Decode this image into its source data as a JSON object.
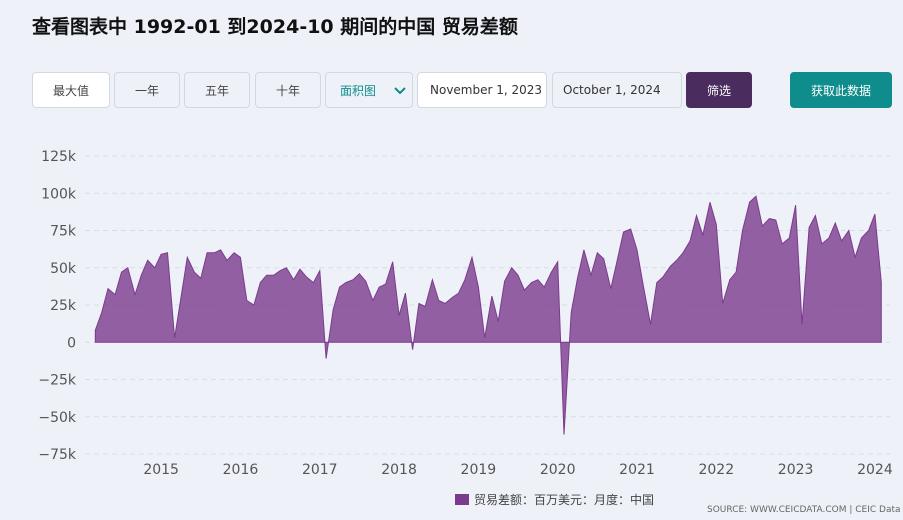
{
  "header": {
    "title": "查看图表中 1992-01 到2024-10 期间的中国 贸易差额"
  },
  "controls": {
    "ranges": [
      "最大值",
      "一年",
      "五年",
      "十年"
    ],
    "chart_type": "面积图",
    "start_date": "November 1, 2023",
    "end_date": "October 1, 2024",
    "filter": "筛选",
    "get_data": "获取此数据"
  },
  "chart_data": {
    "type": "area",
    "x": [
      2014.17,
      2014.25,
      2014.33,
      2014.42,
      2014.5,
      2014.58,
      2014.67,
      2014.75,
      2014.83,
      2014.92,
      2015,
      2015.08,
      2015.17,
      2015.25,
      2015.33,
      2015.42,
      2015.5,
      2015.58,
      2015.67,
      2015.75,
      2015.83,
      2015.92,
      2016,
      2016.08,
      2016.17,
      2016.25,
      2016.33,
      2016.42,
      2016.5,
      2016.58,
      2016.67,
      2016.75,
      2016.83,
      2016.92,
      2017,
      2017.08,
      2017.17,
      2017.25,
      2017.33,
      2017.42,
      2017.5,
      2017.58,
      2017.67,
      2017.75,
      2017.83,
      2017.92,
      2018,
      2018.08,
      2018.17,
      2018.25,
      2018.33,
      2018.42,
      2018.5,
      2018.58,
      2018.67,
      2018.75,
      2018.83,
      2018.92,
      2019,
      2019.08,
      2019.17,
      2019.25,
      2019.33,
      2019.42,
      2019.5,
      2019.58,
      2019.67,
      2019.75,
      2019.83,
      2019.92,
      2020,
      2020.08,
      2020.17,
      2020.25,
      2020.33,
      2020.42,
      2020.5,
      2020.58,
      2020.67,
      2020.75,
      2020.83,
      2020.92,
      2021,
      2021.08,
      2021.17,
      2021.25,
      2021.33,
      2021.42,
      2021.5,
      2021.58,
      2021.67,
      2021.75,
      2021.83,
      2021.92,
      2022,
      2022.08,
      2022.17,
      2022.25,
      2022.33,
      2022.42,
      2022.5,
      2022.58,
      2022.67,
      2022.75,
      2022.83,
      2022.92,
      2023,
      2023.08,
      2023.17,
      2023.25,
      2023.33,
      2023.42,
      2023.5,
      2023.58,
      2023.67,
      2023.75,
      2023.83,
      2023.92,
      2024,
      2024.08
    ],
    "series": [
      {
        "name": "贸易差额：百万美元：月度：中国",
        "color": "#7b3b8c",
        "values": [
          8000,
          20000,
          36000,
          32000,
          47000,
          50000,
          32000,
          45000,
          55000,
          50000,
          59000,
          60000,
          3000,
          30000,
          57000,
          47000,
          43000,
          60000,
          60000,
          62000,
          55000,
          60000,
          57000,
          28000,
          25000,
          40000,
          45000,
          45000,
          48000,
          50000,
          42000,
          49000,
          44000,
          40000,
          48000,
          -11000,
          22000,
          37000,
          40000,
          42000,
          46000,
          41000,
          28000,
          37000,
          39000,
          54000,
          18000,
          33000,
          -5000,
          26000,
          24000,
          42000,
          28000,
          26000,
          30000,
          33000,
          42000,
          57000,
          37000,
          3000,
          31000,
          14000,
          41000,
          50000,
          45000,
          35000,
          40000,
          42000,
          37000,
          47000,
          54000,
          -62000,
          20000,
          43000,
          62000,
          45000,
          60000,
          56000,
          36000,
          55000,
          74000,
          76000,
          62000,
          38000,
          12000,
          40000,
          44000,
          51000,
          55000,
          60000,
          68000,
          85000,
          72000,
          94000,
          79000,
          26000,
          42000,
          47000,
          75000,
          94000,
          98000,
          78000,
          83000,
          82000,
          66000,
          70000,
          92000,
          12000,
          77000,
          85000,
          66000,
          70000,
          80000,
          68000,
          75000,
          57000,
          70000,
          75000,
          86000,
          40000
        ]
      }
    ],
    "xlim": [
      2014.04,
      2024.19
    ],
    "xticks": [
      2015,
      2016,
      2017,
      2018,
      2019,
      2020,
      2021,
      2022,
      2023,
      2024
    ],
    "ylim": [
      -75000,
      125000
    ],
    "yticks": [
      {
        "value": -75000,
        "label": "−75k"
      },
      {
        "value": -50000,
        "label": "−50k"
      },
      {
        "value": -25000,
        "label": "−25k"
      },
      0,
      {
        "value": 25000,
        "label": "25k"
      },
      {
        "value": 50000,
        "label": "50k"
      },
      {
        "value": 75000,
        "label": "75k"
      },
      {
        "value": 100000,
        "label": "100k"
      },
      {
        "value": 125000,
        "label": "125k"
      }
    ],
    "grid": true,
    "source": "SOURCE: WWW.CEICDATA.COM | CEIC Data"
  }
}
